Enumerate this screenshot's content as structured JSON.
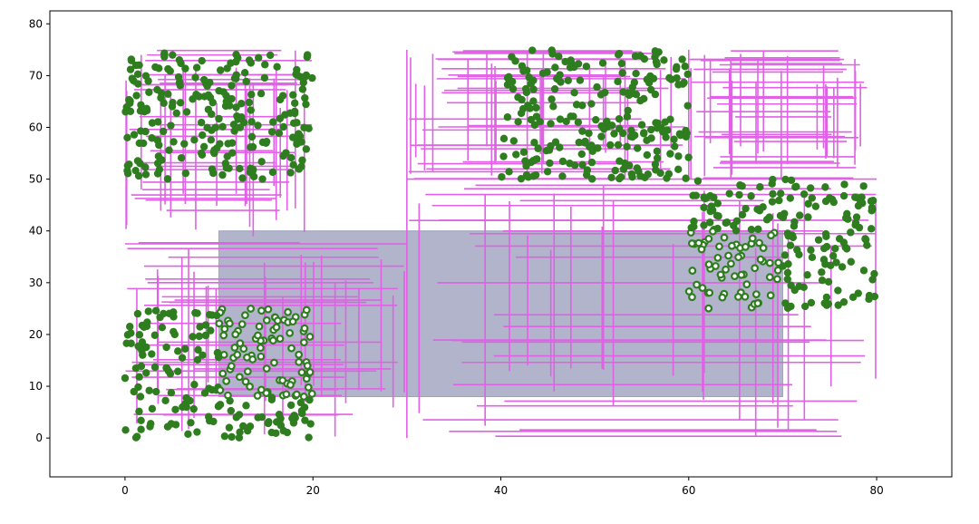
{
  "chart_data": {
    "type": "scatter",
    "title": "",
    "xlabel": "",
    "ylabel": "",
    "xlim": [
      -8,
      88
    ],
    "ylim": [
      -7.5,
      82.5
    ],
    "x_ticks": [
      "0",
      "20",
      "40",
      "60",
      "80"
    ],
    "y_ticks": [
      "0",
      "10",
      "20",
      "30",
      "40",
      "50",
      "60",
      "70",
      "80"
    ],
    "grid": false,
    "legend": "none",
    "colors": {
      "partition_lines": "#e060e6",
      "query_rect_fill": "#aeb0c8",
      "query_rect_edge": "#8f92b0",
      "points": "#2e7d1f",
      "selected_fill": "#ffffff",
      "selected_edge": "#2e7d1f"
    },
    "query_rectangle": {
      "x_min": 10,
      "x_max": 70,
      "y_min": 8,
      "y_max": 40
    },
    "point_clusters": [
      {
        "x_range": [
          0,
          20
        ],
        "y_range": [
          50,
          75
        ],
        "count": 230
      },
      {
        "x_range": [
          40,
          60
        ],
        "y_range": [
          50,
          75
        ],
        "count": 230
      },
      {
        "x_range": [
          60,
          80
        ],
        "y_range": [
          25,
          50
        ],
        "count": 220
      },
      {
        "x_range": [
          0,
          20
        ],
        "y_range": [
          0,
          25
        ],
        "count": 230
      }
    ],
    "partition_regions": [
      {
        "x_range": [
          0,
          20
        ],
        "y_range": [
          37.5,
          75
        ]
      },
      {
        "x_range": [
          0,
          30
        ],
        "y_range": [
          0,
          37.5
        ]
      },
      {
        "x_range": [
          30,
          60
        ],
        "y_range": [
          50,
          75
        ]
      },
      {
        "x_range": [
          30,
          80
        ],
        "y_range": [
          0,
          50
        ]
      },
      {
        "x_range": [
          60,
          80
        ],
        "y_range": [
          50,
          75
        ]
      }
    ]
  }
}
